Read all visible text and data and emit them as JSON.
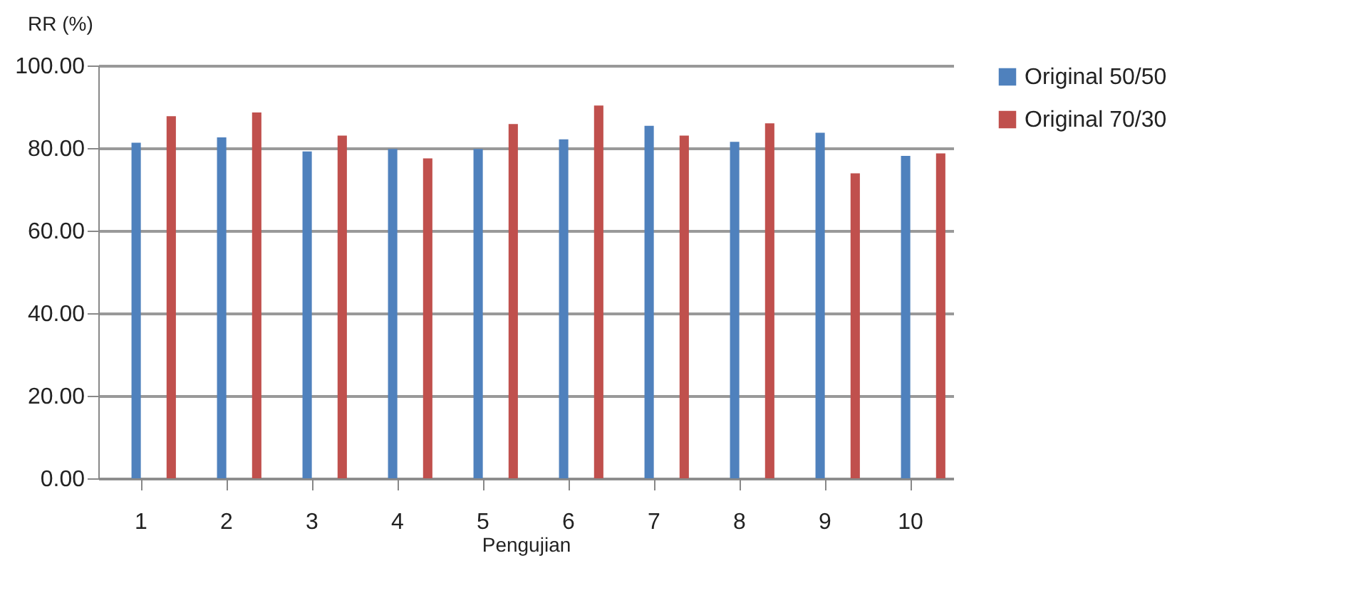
{
  "chart_data": {
    "type": "bar",
    "xlabel": "Pengujian",
    "ylabel": "RR (%)",
    "categories": [
      "1",
      "2",
      "3",
      "4",
      "5",
      "6",
      "7",
      "8",
      "9",
      "10"
    ],
    "series": [
      {
        "name": "Original 50/50",
        "color": "#4f81bd",
        "values": [
          81.3,
          82.6,
          79.2,
          79.8,
          79.8,
          82.1,
          85.4,
          81.5,
          83.7,
          78.1
        ]
      },
      {
        "name": "Original 70/30",
        "color": "#c0504d",
        "values": [
          87.7,
          88.6,
          83.0,
          77.5,
          85.8,
          90.3,
          83.0,
          86.0,
          73.9,
          78.7
        ]
      }
    ],
    "ylim": [
      0,
      100
    ],
    "yticks": [
      {
        "value": 0,
        "label": "0.00"
      },
      {
        "value": 20,
        "label": "20.00"
      },
      {
        "value": 40,
        "label": "40.00"
      },
      {
        "value": 60,
        "label": "60.00"
      },
      {
        "value": 80,
        "label": "80.00"
      },
      {
        "value": 100,
        "label": "100.00"
      }
    ],
    "grid": "y",
    "legend": "right"
  }
}
